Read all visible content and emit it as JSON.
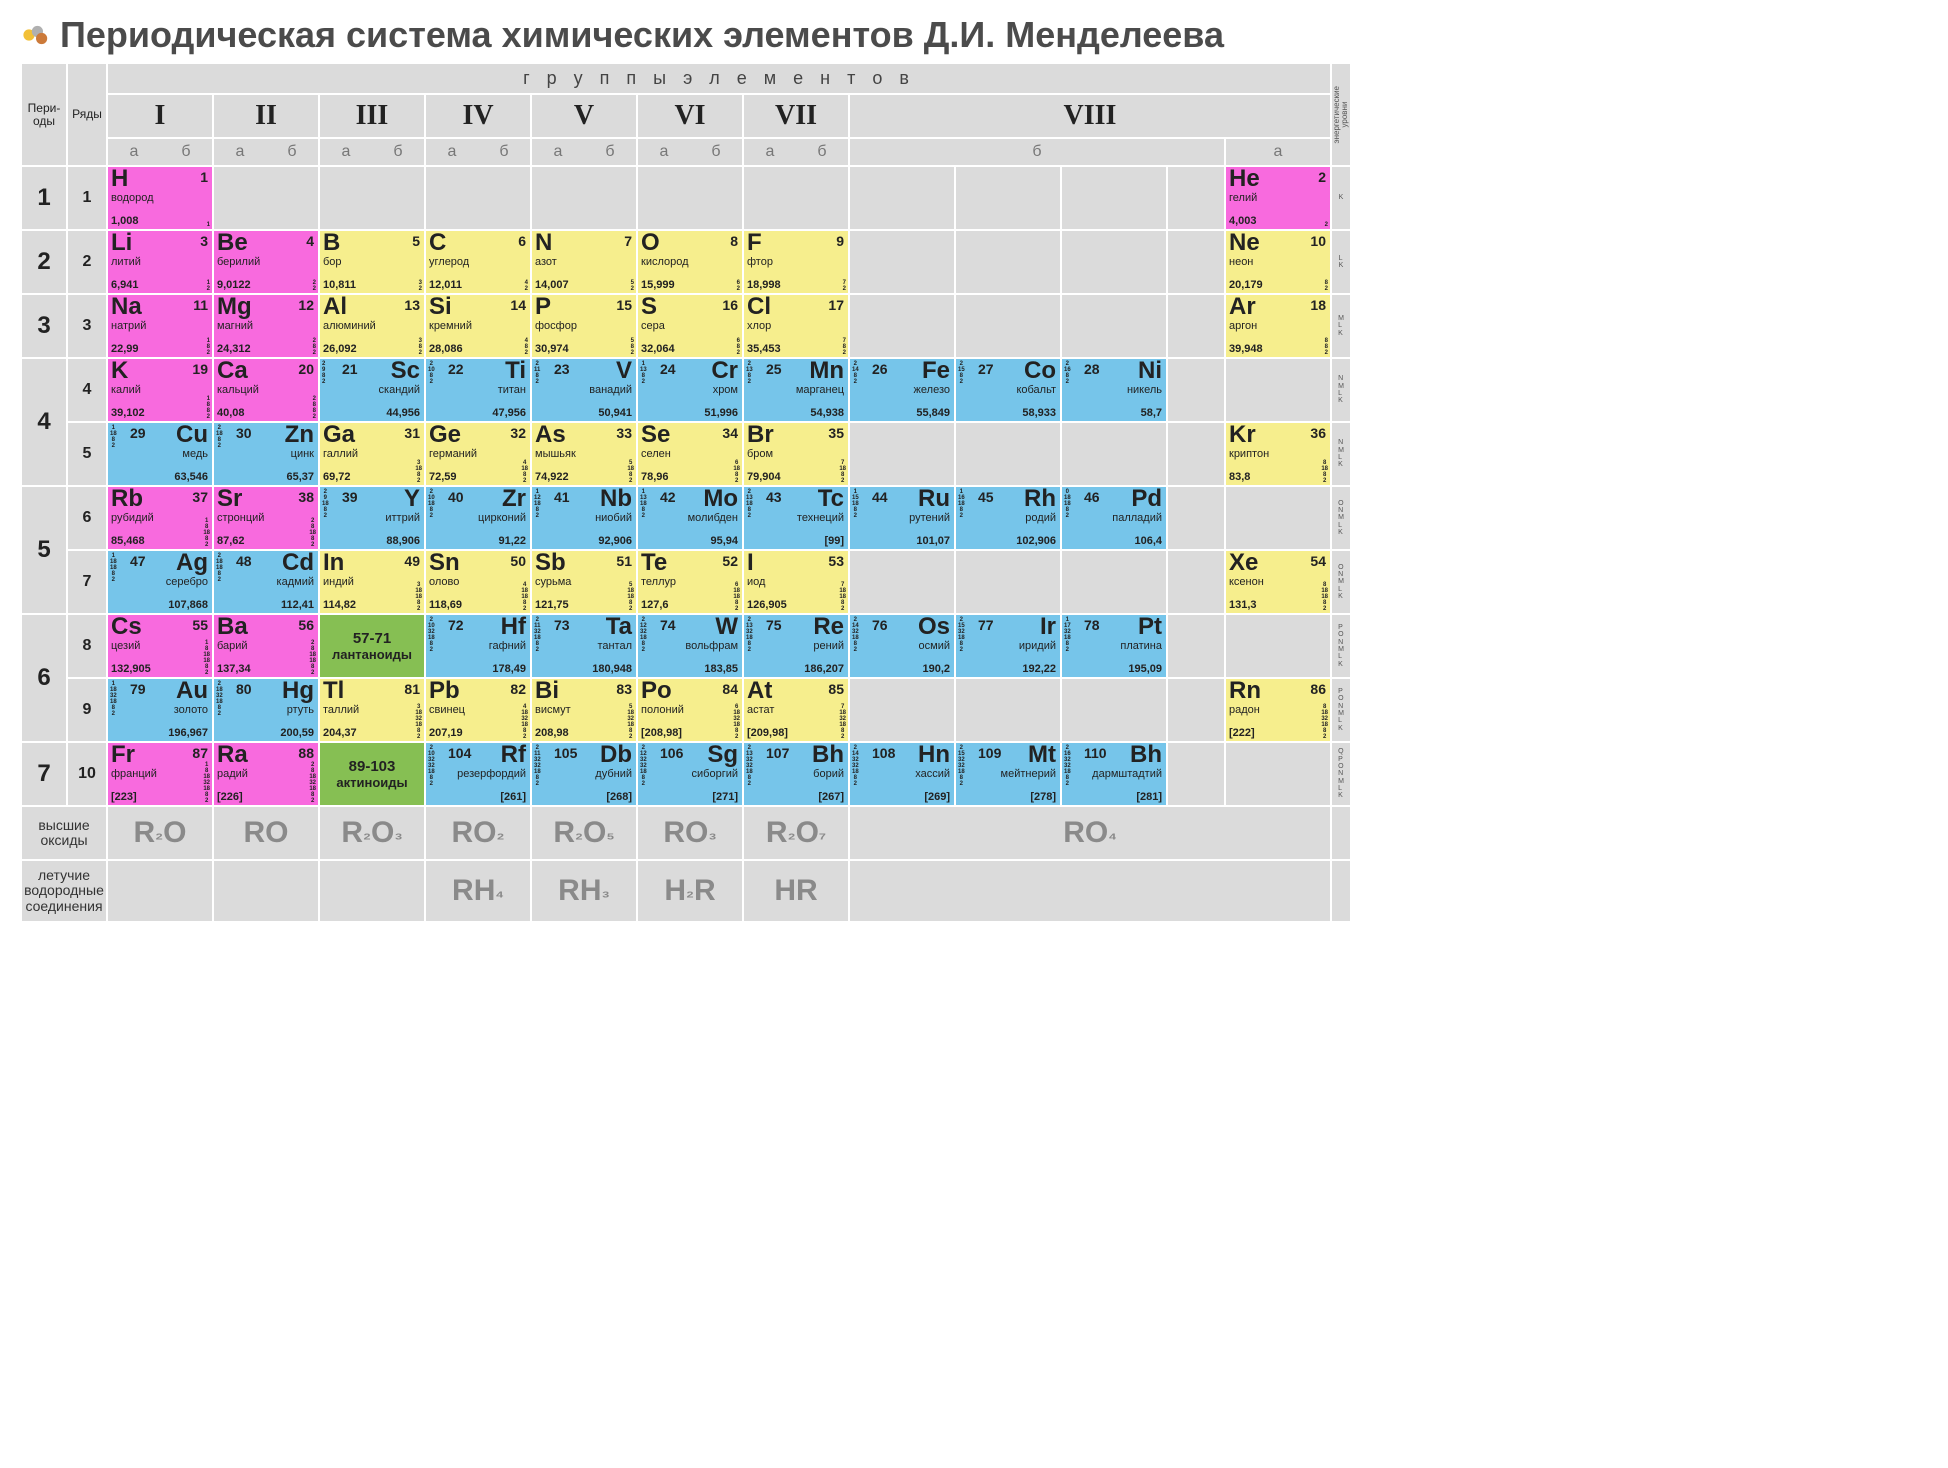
{
  "title": "Периодическая система химических элементов Д.И. Менделеева",
  "labels": {
    "groups": "г р у п п ы   э л е м е н т о в",
    "periods": "Пери-\nоды",
    "rows": "Ряды",
    "energy_levels": "энергетические\nуровни",
    "oxides": "высшие оксиды",
    "hydrides": "летучие водородные соединения",
    "sub_a": "а",
    "sub_b": "б"
  },
  "colors": {
    "pink": "#f86ade",
    "yellow": "#f6ee8d",
    "blue": "#76c5ea",
    "green": "#86bf53",
    "grid": "#dbdbdb",
    "bg": "#ffffff"
  },
  "group_headers": [
    "I",
    "II",
    "III",
    "IV",
    "V",
    "VI",
    "VII",
    "VIII"
  ],
  "periods": [
    {
      "period": "1",
      "rows": [
        "1"
      ]
    },
    {
      "period": "2",
      "rows": [
        "2"
      ]
    },
    {
      "period": "3",
      "rows": [
        "3"
      ]
    },
    {
      "period": "4",
      "rows": [
        "4",
        "5"
      ]
    },
    {
      "period": "5",
      "rows": [
        "6",
        "7"
      ]
    },
    {
      "period": "6",
      "rows": [
        "8",
        "9"
      ]
    },
    {
      "period": "7",
      "rows": [
        "10"
      ]
    }
  ],
  "energy_levels": {
    "1": "K",
    "2": "L\nK",
    "3": "M\nL\nK",
    "4": "N\nM\nL\nK",
    "5": "N\nM\nL\nK",
    "6": "O\nN\nM\nL\nK",
    "7": "O\nN\nM\nL\nK",
    "8": "P\nO\nN\nM\nL\nK",
    "9": "P\nO\nN\nM\nL\nK",
    "10": "Q\nP\nO\nN\nM\nL\nK"
  },
  "lanthanoids": {
    "range": "57-71",
    "label": "лантаноиды"
  },
  "actinoids": {
    "range": "89-103",
    "label": "актиноиды"
  },
  "oxides": [
    "R₂O",
    "RO",
    "R₂O₃",
    "RO₂",
    "R₂O₅",
    "RO₃",
    "R₂O₇",
    "RO₄"
  ],
  "hydrides": [
    "",
    "",
    "",
    "RH₄",
    "RH₃",
    "H₂R",
    "HR",
    ""
  ],
  "elements": {
    "1": [
      {
        "c": 1,
        "lay": "a",
        "color": "pink",
        "sym": "H",
        "num": "1",
        "name": "водород",
        "mass": "1,008",
        "sh": "1"
      },
      {
        "c": 12,
        "lay": "a",
        "color": "pink",
        "sym": "He",
        "num": "2",
        "name": "гелий",
        "mass": "4,003",
        "sh": "2"
      }
    ],
    "2": [
      {
        "c": 1,
        "lay": "a",
        "color": "pink",
        "sym": "Li",
        "num": "3",
        "name": "литий",
        "mass": "6,941",
        "sh": "1\n2"
      },
      {
        "c": 2,
        "lay": "a",
        "color": "pink",
        "sym": "Be",
        "num": "4",
        "name": "берилий",
        "mass": "9,0122",
        "sh": "2\n2"
      },
      {
        "c": 3,
        "lay": "a",
        "color": "yellow",
        "sym": "B",
        "num": "5",
        "name": "бор",
        "mass": "10,811",
        "sh": "3\n2"
      },
      {
        "c": 4,
        "lay": "a",
        "color": "yellow",
        "sym": "C",
        "num": "6",
        "name": "углерод",
        "mass": "12,011",
        "sh": "4\n2"
      },
      {
        "c": 5,
        "lay": "a",
        "color": "yellow",
        "sym": "N",
        "num": "7",
        "name": "азот",
        "mass": "14,007",
        "sh": "5\n2"
      },
      {
        "c": 6,
        "lay": "a",
        "color": "yellow",
        "sym": "O",
        "num": "8",
        "name": "кислород",
        "mass": "15,999",
        "sh": "6\n2"
      },
      {
        "c": 7,
        "lay": "a",
        "color": "yellow",
        "sym": "F",
        "num": "9",
        "name": "фтор",
        "mass": "18,998",
        "sh": "7\n2"
      },
      {
        "c": 12,
        "lay": "a",
        "color": "yellow",
        "sym": "Ne",
        "num": "10",
        "name": "неон",
        "mass": "20,179",
        "sh": "8\n2"
      }
    ],
    "3": [
      {
        "c": 1,
        "lay": "a",
        "color": "pink",
        "sym": "Na",
        "num": "11",
        "name": "натрий",
        "mass": "22,99",
        "sh": "1\n8\n2"
      },
      {
        "c": 2,
        "lay": "a",
        "color": "pink",
        "sym": "Mg",
        "num": "12",
        "name": "магний",
        "mass": "24,312",
        "sh": "2\n8\n2"
      },
      {
        "c": 3,
        "lay": "a",
        "color": "yellow",
        "sym": "Al",
        "num": "13",
        "name": "алюминий",
        "mass": "26,092",
        "sh": "3\n8\n2"
      },
      {
        "c": 4,
        "lay": "a",
        "color": "yellow",
        "sym": "Si",
        "num": "14",
        "name": "кремний",
        "mass": "28,086",
        "sh": "4\n8\n2"
      },
      {
        "c": 5,
        "lay": "a",
        "color": "yellow",
        "sym": "P",
        "num": "15",
        "name": "фосфор",
        "mass": "30,974",
        "sh": "5\n8\n2"
      },
      {
        "c": 6,
        "lay": "a",
        "color": "yellow",
        "sym": "S",
        "num": "16",
        "name": "сера",
        "mass": "32,064",
        "sh": "6\n8\n2"
      },
      {
        "c": 7,
        "lay": "a",
        "color": "yellow",
        "sym": "Cl",
        "num": "17",
        "name": "хлор",
        "mass": "35,453",
        "sh": "7\n8\n2"
      },
      {
        "c": 12,
        "lay": "a",
        "color": "yellow",
        "sym": "Ar",
        "num": "18",
        "name": "аргон",
        "mass": "39,948",
        "sh": "8\n8\n2"
      }
    ],
    "4": [
      {
        "c": 1,
        "lay": "a",
        "color": "pink",
        "sym": "K",
        "num": "19",
        "name": "калий",
        "mass": "39,102",
        "sh": "1\n8\n8\n2"
      },
      {
        "c": 2,
        "lay": "a",
        "color": "pink",
        "sym": "Ca",
        "num": "20",
        "name": "кальций",
        "mass": "40,08",
        "sh": "2\n8\n8\n2"
      },
      {
        "c": 3,
        "lay": "b",
        "color": "blue",
        "sym": "Sc",
        "num": "21",
        "name": "скандий",
        "mass": "44,956",
        "sh": "2\n9\n8\n2"
      },
      {
        "c": 4,
        "lay": "b",
        "color": "blue",
        "sym": "Ti",
        "num": "22",
        "name": "титан",
        "mass": "47,956",
        "sh": "2\n10\n8\n2"
      },
      {
        "c": 5,
        "lay": "b",
        "color": "blue",
        "sym": "V",
        "num": "23",
        "name": "ванадий",
        "mass": "50,941",
        "sh": "2\n11\n8\n2"
      },
      {
        "c": 6,
        "lay": "b",
        "color": "blue",
        "sym": "Cr",
        "num": "24",
        "name": "хром",
        "mass": "51,996",
        "sh": "1\n13\n8\n2"
      },
      {
        "c": 7,
        "lay": "b",
        "color": "blue",
        "sym": "Mn",
        "num": "25",
        "name": "марганец",
        "mass": "54,938",
        "sh": "2\n13\n8\n2"
      },
      {
        "c": 8,
        "lay": "b",
        "color": "blue",
        "sym": "Fe",
        "num": "26",
        "name": "железо",
        "mass": "55,849",
        "sh": "2\n14\n8\n2"
      },
      {
        "c": 9,
        "lay": "b",
        "color": "blue",
        "sym": "Co",
        "num": "27",
        "name": "кобальт",
        "mass": "58,933",
        "sh": "2\n15\n8\n2"
      },
      {
        "c": 10,
        "lay": "b",
        "color": "blue",
        "sym": "Ni",
        "num": "28",
        "name": "никель",
        "mass": "58,7",
        "sh": "2\n16\n8\n2"
      }
    ],
    "5": [
      {
        "c": 1,
        "lay": "b",
        "color": "blue",
        "sym": "Cu",
        "num": "29",
        "name": "медь",
        "mass": "63,546",
        "sh": "1\n18\n8\n2"
      },
      {
        "c": 2,
        "lay": "b",
        "color": "blue",
        "sym": "Zn",
        "num": "30",
        "name": "цинк",
        "mass": "65,37",
        "sh": "2\n18\n8\n2"
      },
      {
        "c": 3,
        "lay": "a",
        "color": "yellow",
        "sym": "Ga",
        "num": "31",
        "name": "галлий",
        "mass": "69,72",
        "sh": "3\n18\n8\n2"
      },
      {
        "c": 4,
        "lay": "a",
        "color": "yellow",
        "sym": "Ge",
        "num": "32",
        "name": "германий",
        "mass": "72,59",
        "sh": "4\n18\n8\n2"
      },
      {
        "c": 5,
        "lay": "a",
        "color": "yellow",
        "sym": "As",
        "num": "33",
        "name": "мышьяк",
        "mass": "74,922",
        "sh": "5\n18\n8\n2"
      },
      {
        "c": 6,
        "lay": "a",
        "color": "yellow",
        "sym": "Se",
        "num": "34",
        "name": "селен",
        "mass": "78,96",
        "sh": "6\n18\n8\n2"
      },
      {
        "c": 7,
        "lay": "a",
        "color": "yellow",
        "sym": "Br",
        "num": "35",
        "name": "бром",
        "mass": "79,904",
        "sh": "7\n18\n8\n2"
      },
      {
        "c": 12,
        "lay": "a",
        "color": "yellow",
        "sym": "Kr",
        "num": "36",
        "name": "криптон",
        "mass": "83,8",
        "sh": "8\n18\n8\n2"
      }
    ],
    "6": [
      {
        "c": 1,
        "lay": "a",
        "color": "pink",
        "sym": "Rb",
        "num": "37",
        "name": "рубидий",
        "mass": "85,468",
        "sh": "1\n8\n18\n8\n2"
      },
      {
        "c": 2,
        "lay": "a",
        "color": "pink",
        "sym": "Sr",
        "num": "38",
        "name": "стронций",
        "mass": "87,62",
        "sh": "2\n8\n18\n8\n2"
      },
      {
        "c": 3,
        "lay": "b",
        "color": "blue",
        "sym": "Y",
        "num": "39",
        "name": "иттрий",
        "mass": "88,906",
        "sh": "2\n9\n18\n8\n2"
      },
      {
        "c": 4,
        "lay": "b",
        "color": "blue",
        "sym": "Zr",
        "num": "40",
        "name": "цирконий",
        "mass": "91,22",
        "sh": "2\n10\n18\n8\n2"
      },
      {
        "c": 5,
        "lay": "b",
        "color": "blue",
        "sym": "Nb",
        "num": "41",
        "name": "ниобий",
        "mass": "92,906",
        "sh": "1\n12\n18\n8\n2"
      },
      {
        "c": 6,
        "lay": "b",
        "color": "blue",
        "sym": "Mo",
        "num": "42",
        "name": "молибден",
        "mass": "95,94",
        "sh": "1\n13\n18\n8\n2"
      },
      {
        "c": 7,
        "lay": "b",
        "color": "blue",
        "sym": "Tc",
        "num": "43",
        "name": "технеций",
        "mass": "[99]",
        "sh": "2\n13\n18\n8\n2"
      },
      {
        "c": 8,
        "lay": "b",
        "color": "blue",
        "sym": "Ru",
        "num": "44",
        "name": "рутений",
        "mass": "101,07",
        "sh": "1\n15\n18\n8\n2"
      },
      {
        "c": 9,
        "lay": "b",
        "color": "blue",
        "sym": "Rh",
        "num": "45",
        "name": "родий",
        "mass": "102,906",
        "sh": "1\n16\n18\n8\n2"
      },
      {
        "c": 10,
        "lay": "b",
        "color": "blue",
        "sym": "Pd",
        "num": "46",
        "name": "палладий",
        "mass": "106,4",
        "sh": "0\n18\n18\n8\n2"
      }
    ],
    "7": [
      {
        "c": 1,
        "lay": "b",
        "color": "blue",
        "sym": "Ag",
        "num": "47",
        "name": "серебро",
        "mass": "107,868",
        "sh": "1\n18\n18\n8\n2"
      },
      {
        "c": 2,
        "lay": "b",
        "color": "blue",
        "sym": "Cd",
        "num": "48",
        "name": "кадмий",
        "mass": "112,41",
        "sh": "2\n18\n18\n8\n2"
      },
      {
        "c": 3,
        "lay": "a",
        "color": "yellow",
        "sym": "In",
        "num": "49",
        "name": "индий",
        "mass": "114,82",
        "sh": "3\n18\n18\n8\n2"
      },
      {
        "c": 4,
        "lay": "a",
        "color": "yellow",
        "sym": "Sn",
        "num": "50",
        "name": "олово",
        "mass": "118,69",
        "sh": "4\n18\n18\n8\n2"
      },
      {
        "c": 5,
        "lay": "a",
        "color": "yellow",
        "sym": "Sb",
        "num": "51",
        "name": "сурьма",
        "mass": "121,75",
        "sh": "5\n18\n18\n8\n2"
      },
      {
        "c": 6,
        "lay": "a",
        "color": "yellow",
        "sym": "Te",
        "num": "52",
        "name": "теллур",
        "mass": "127,6",
        "sh": "6\n18\n18\n8\n2"
      },
      {
        "c": 7,
        "lay": "a",
        "color": "yellow",
        "sym": "I",
        "num": "53",
        "name": "иод",
        "mass": "126,905",
        "sh": "7\n18\n18\n8\n2"
      },
      {
        "c": 12,
        "lay": "a",
        "color": "yellow",
        "sym": "Xe",
        "num": "54",
        "name": "ксенон",
        "mass": "131,3",
        "sh": "8\n18\n18\n8\n2"
      }
    ],
    "8": [
      {
        "c": 1,
        "lay": "a",
        "color": "pink",
        "sym": "Cs",
        "num": "55",
        "name": "цезий",
        "mass": "132,905",
        "sh": "1\n8\n18\n18\n8\n2"
      },
      {
        "c": 2,
        "lay": "a",
        "color": "pink",
        "sym": "Ba",
        "num": "56",
        "name": "барий",
        "mass": "137,34",
        "sh": "2\n8\n18\n18\n8\n2"
      },
      {
        "c": 3,
        "special": "lanthanoids"
      },
      {
        "c": 4,
        "lay": "b",
        "color": "blue",
        "sym": "Hf",
        "num": "72",
        "name": "гафний",
        "mass": "178,49",
        "sh": "2\n10\n32\n18\n8\n2"
      },
      {
        "c": 5,
        "lay": "b",
        "color": "blue",
        "sym": "Ta",
        "num": "73",
        "name": "тантал",
        "mass": "180,948",
        "sh": "2\n11\n32\n18\n8\n2"
      },
      {
        "c": 6,
        "lay": "b",
        "color": "blue",
        "sym": "W",
        "num": "74",
        "name": "вольфрам",
        "mass": "183,85",
        "sh": "2\n12\n32\n18\n8\n2"
      },
      {
        "c": 7,
        "lay": "b",
        "color": "blue",
        "sym": "Re",
        "num": "75",
        "name": "рений",
        "mass": "186,207",
        "sh": "2\n13\n32\n18\n8\n2"
      },
      {
        "c": 8,
        "lay": "b",
        "color": "blue",
        "sym": "Os",
        "num": "76",
        "name": "осмий",
        "mass": "190,2",
        "sh": "2\n14\n32\n18\n8\n2"
      },
      {
        "c": 9,
        "lay": "b",
        "color": "blue",
        "sym": "Ir",
        "num": "77",
        "name": "иридий",
        "mass": "192,22",
        "sh": "2\n15\n32\n18\n8\n2"
      },
      {
        "c": 10,
        "lay": "b",
        "color": "blue",
        "sym": "Pt",
        "num": "78",
        "name": "платина",
        "mass": "195,09",
        "sh": "1\n17\n32\n18\n8\n2"
      }
    ],
    "9": [
      {
        "c": 1,
        "lay": "b",
        "color": "blue",
        "sym": "Au",
        "num": "79",
        "name": "золото",
        "mass": "196,967",
        "sh": "1\n18\n32\n18\n8\n2"
      },
      {
        "c": 2,
        "lay": "b",
        "color": "blue",
        "sym": "Hg",
        "num": "80",
        "name": "ртуть",
        "mass": "200,59",
        "sh": "2\n18\n32\n18\n8\n2"
      },
      {
        "c": 3,
        "lay": "a",
        "color": "yellow",
        "sym": "Tl",
        "num": "81",
        "name": "таллий",
        "mass": "204,37",
        "sh": "3\n18\n32\n18\n8\n2"
      },
      {
        "c": 4,
        "lay": "a",
        "color": "yellow",
        "sym": "Pb",
        "num": "82",
        "name": "свинец",
        "mass": "207,19",
        "sh": "4\n18\n32\n18\n8\n2"
      },
      {
        "c": 5,
        "lay": "a",
        "color": "yellow",
        "sym": "Bi",
        "num": "83",
        "name": "висмут",
        "mass": "208,98",
        "sh": "5\n18\n32\n18\n8\n2"
      },
      {
        "c": 6,
        "lay": "a",
        "color": "yellow",
        "sym": "Po",
        "num": "84",
        "name": "полоний",
        "mass": "[208,98]",
        "sh": "6\n18\n32\n18\n8\n2"
      },
      {
        "c": 7,
        "lay": "a",
        "color": "yellow",
        "sym": "At",
        "num": "85",
        "name": "астат",
        "mass": "[209,98]",
        "sh": "7\n18\n32\n18\n8\n2"
      },
      {
        "c": 12,
        "lay": "a",
        "color": "yellow",
        "sym": "Rn",
        "num": "86",
        "name": "радон",
        "mass": "[222]",
        "sh": "8\n18\n32\n18\n8\n2"
      }
    ],
    "10": [
      {
        "c": 1,
        "lay": "a",
        "color": "pink",
        "sym": "Fr",
        "num": "87",
        "name": "франций",
        "mass": "[223]",
        "sh": "1\n8\n18\n32\n18\n8\n2"
      },
      {
        "c": 2,
        "lay": "a",
        "color": "pink",
        "sym": "Ra",
        "num": "88",
        "name": "радий",
        "mass": "[226]",
        "sh": "2\n8\n18\n32\n18\n8\n2"
      },
      {
        "c": 3,
        "special": "actinoids"
      },
      {
        "c": 4,
        "lay": "b",
        "color": "blue",
        "sym": "Rf",
        "num": "104",
        "name": "резерфордий",
        "mass": "[261]",
        "sh": "2\n10\n32\n32\n18\n8\n2"
      },
      {
        "c": 5,
        "lay": "b",
        "color": "blue",
        "sym": "Db",
        "num": "105",
        "name": "дубний",
        "mass": "[268]",
        "sh": "2\n11\n32\n32\n18\n8\n2"
      },
      {
        "c": 6,
        "lay": "b",
        "color": "blue",
        "sym": "Sg",
        "num": "106",
        "name": "сиборгий",
        "mass": "[271]",
        "sh": "2\n12\n32\n32\n18\n8\n2"
      },
      {
        "c": 7,
        "lay": "b",
        "color": "blue",
        "sym": "Bh",
        "num": "107",
        "name": "борий",
        "mass": "[267]",
        "sh": "2\n13\n32\n32\n18\n8\n2"
      },
      {
        "c": 8,
        "lay": "b",
        "color": "blue",
        "sym": "Hn",
        "num": "108",
        "name": "хассий",
        "mass": "[269]",
        "sh": "2\n14\n32\n32\n18\n8\n2"
      },
      {
        "c": 9,
        "lay": "b",
        "color": "blue",
        "sym": "Mt",
        "num": "109",
        "name": "мейтнерий",
        "mass": "[278]",
        "sh": "2\n15\n32\n32\n18\n8\n2"
      },
      {
        "c": 10,
        "lay": "b",
        "color": "blue",
        "sym": "Bh",
        "num": "110",
        "name": "дармштадтий",
        "mass": "[281]",
        "sh": "2\n16\n32\n32\n18\n8\n2"
      }
    ]
  }
}
